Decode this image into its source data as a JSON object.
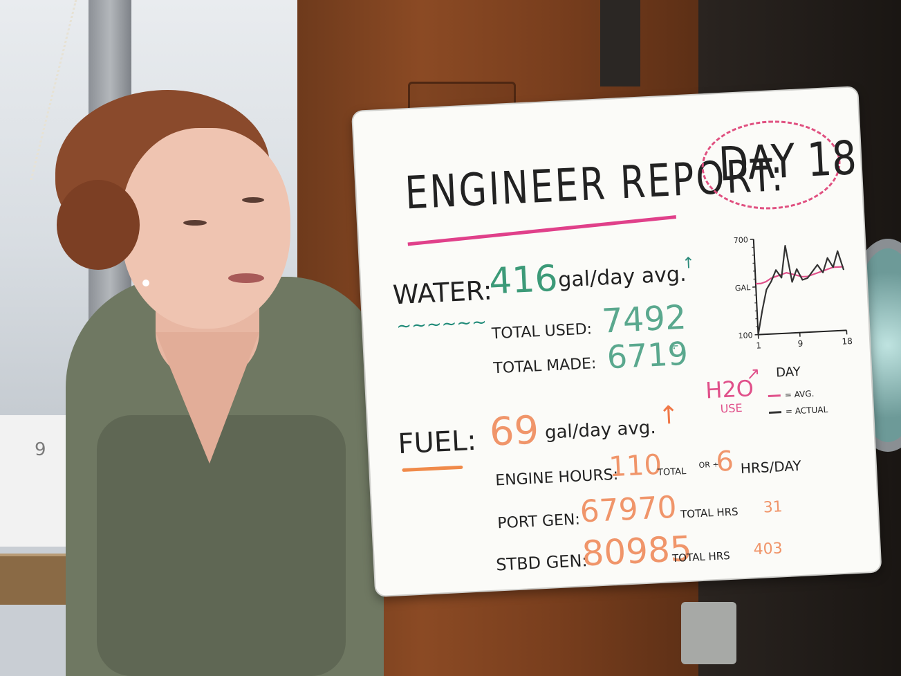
{
  "board": {
    "title": "ENGINEER REPORT:",
    "day": "DAY 18",
    "water": {
      "label": "WATER:",
      "squiggle": "~~~~~~",
      "value": "416",
      "unit": "gal/day avg.",
      "arrow": "↑",
      "total_used_label": "TOTAL USED:",
      "total_used": "7492",
      "total_made_label": "TOTAL MADE:",
      "total_made": "6719",
      "total_made_mark": "÷"
    },
    "fuel": {
      "label": "FUEL:",
      "value": "69",
      "unit": "gal/day avg.",
      "arrow": "↑"
    },
    "engine": {
      "label": "ENGINE HOURS:",
      "value": "110",
      "total": "TOTAL",
      "or": "OR ÷",
      "per_value": "6",
      "per_unit": "HRS/DAY"
    },
    "port_gen": {
      "label": "PORT GEN:",
      "value": "67970",
      "total": "TOTAL HRS",
      "hrs": "31"
    },
    "stbd_gen": {
      "label": "STBD GEN:",
      "value": "80985",
      "total": "TOTAL HRS",
      "hrs": "403"
    },
    "h2o": {
      "label": "H2O",
      "arrow": "↗",
      "use": "USE"
    },
    "chart_legend": {
      "avg": "= AVG.",
      "actual": "= ACTUAL"
    }
  },
  "background": {
    "hull_number": "9"
  },
  "chart_data": {
    "type": "line",
    "title": "",
    "xlabel": "DAY",
    "ylabel": "GAL",
    "x_ticks": [
      "1",
      "9",
      "18"
    ],
    "y_ticks": [
      "100",
      "GAL",
      "700"
    ],
    "xlim": [
      1,
      18
    ],
    "ylim": [
      100,
      700
    ],
    "series": [
      {
        "name": "= AVG.",
        "color": "#e0508a",
        "x": [
          1,
          2,
          3,
          4,
          5,
          6,
          7,
          8,
          9,
          10,
          11,
          12,
          13,
          14,
          15,
          16,
          17,
          18
        ],
        "values": [
          420,
          420,
          430,
          450,
          460,
          470,
          480,
          470,
          460,
          450,
          450,
          460,
          470,
          480,
          490,
          500,
          500,
          500
        ]
      },
      {
        "name": "= ACTUAL",
        "color": "#333333",
        "x": [
          1,
          2,
          3,
          4,
          5,
          6,
          7,
          8,
          9,
          10,
          11,
          12,
          13,
          14,
          15,
          16,
          17,
          18
        ],
        "values": [
          100,
          250,
          380,
          430,
          500,
          450,
          650,
          420,
          500,
          430,
          440,
          480,
          520,
          470,
          560,
          500,
          600,
          480
        ]
      }
    ]
  }
}
